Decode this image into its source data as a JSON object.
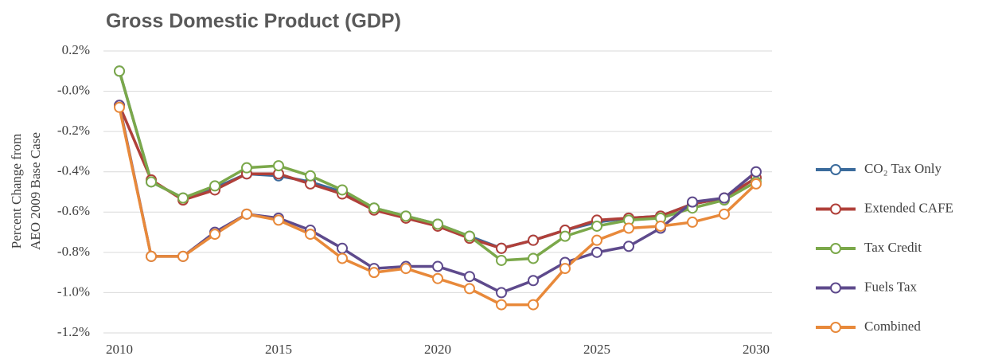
{
  "chart_data": {
    "type": "line",
    "title": "Gross Domestic Product (GDP)",
    "ylabel": [
      "Percent Change from",
      "AEO 2009 Base Case"
    ],
    "x": [
      2010,
      2011,
      2012,
      2013,
      2014,
      2015,
      2016,
      2017,
      2018,
      2019,
      2020,
      2021,
      2022,
      2023,
      2024,
      2025,
      2026,
      2027,
      2028,
      2029,
      2030
    ],
    "xlim": [
      2009.5,
      2030.5
    ],
    "xticks": [
      2010,
      2015,
      2020,
      2025,
      2030
    ],
    "ylim": [
      -1.2,
      0.2
    ],
    "yticks": [
      {
        "value": -1.2,
        "label": "-1.2%"
      },
      {
        "value": -1.0,
        "label": "-1.0%"
      },
      {
        "value": -0.8,
        "label": "-0.8%"
      },
      {
        "value": -0.6,
        "label": "-0.6%"
      },
      {
        "value": -0.4,
        "label": "-0.4%"
      },
      {
        "value": -0.2,
        "label": "-0.2%"
      },
      {
        "value": 0,
        "label": "-0.0%"
      },
      {
        "value": 0.2,
        "label": "0.2%"
      }
    ],
    "grid": true,
    "legend": "right",
    "series": [
      {
        "name": "CO₂ Tax Only",
        "color": "#3b6b9c",
        "values": [
          0.1,
          -0.45,
          -0.53,
          -0.48,
          -0.41,
          -0.42,
          -0.45,
          -0.5,
          -0.58,
          -0.62,
          -0.66,
          -0.72,
          -0.78,
          -0.74,
          -0.69,
          -0.65,
          -0.63,
          -0.62,
          -0.56,
          -0.53,
          -0.43
        ]
      },
      {
        "name": "Extended CAFE",
        "color": "#b0403a",
        "values": [
          -0.07,
          -0.44,
          -0.54,
          -0.49,
          -0.41,
          -0.41,
          -0.46,
          -0.51,
          -0.59,
          -0.63,
          -0.67,
          -0.73,
          -0.78,
          -0.74,
          -0.69,
          -0.64,
          -0.63,
          -0.62,
          -0.56,
          -0.53,
          -0.43
        ]
      },
      {
        "name": "Tax Credit",
        "color": "#7ba84a",
        "values": [
          0.1,
          -0.45,
          -0.53,
          -0.47,
          -0.38,
          -0.37,
          -0.42,
          -0.49,
          -0.58,
          -0.62,
          -0.66,
          -0.72,
          -0.84,
          -0.83,
          -0.72,
          -0.67,
          -0.64,
          -0.63,
          -0.58,
          -0.54,
          -0.45
        ]
      },
      {
        "name": "Fuels Tax",
        "color": "#5e4a8c",
        "values": [
          -0.07,
          -0.82,
          -0.82,
          -0.7,
          -0.61,
          -0.63,
          -0.69,
          -0.78,
          -0.88,
          -0.87,
          -0.87,
          -0.92,
          -1.0,
          -0.94,
          -0.85,
          -0.8,
          -0.77,
          -0.68,
          -0.55,
          -0.53,
          -0.4
        ]
      },
      {
        "name": "Combined",
        "color": "#e8893a",
        "values": [
          -0.08,
          -0.82,
          -0.82,
          -0.71,
          -0.61,
          -0.64,
          -0.71,
          -0.83,
          -0.9,
          -0.88,
          -0.93,
          -0.98,
          -1.06,
          -1.06,
          -0.88,
          -0.74,
          -0.68,
          -0.67,
          -0.65,
          -0.61,
          -0.46
        ]
      }
    ]
  }
}
